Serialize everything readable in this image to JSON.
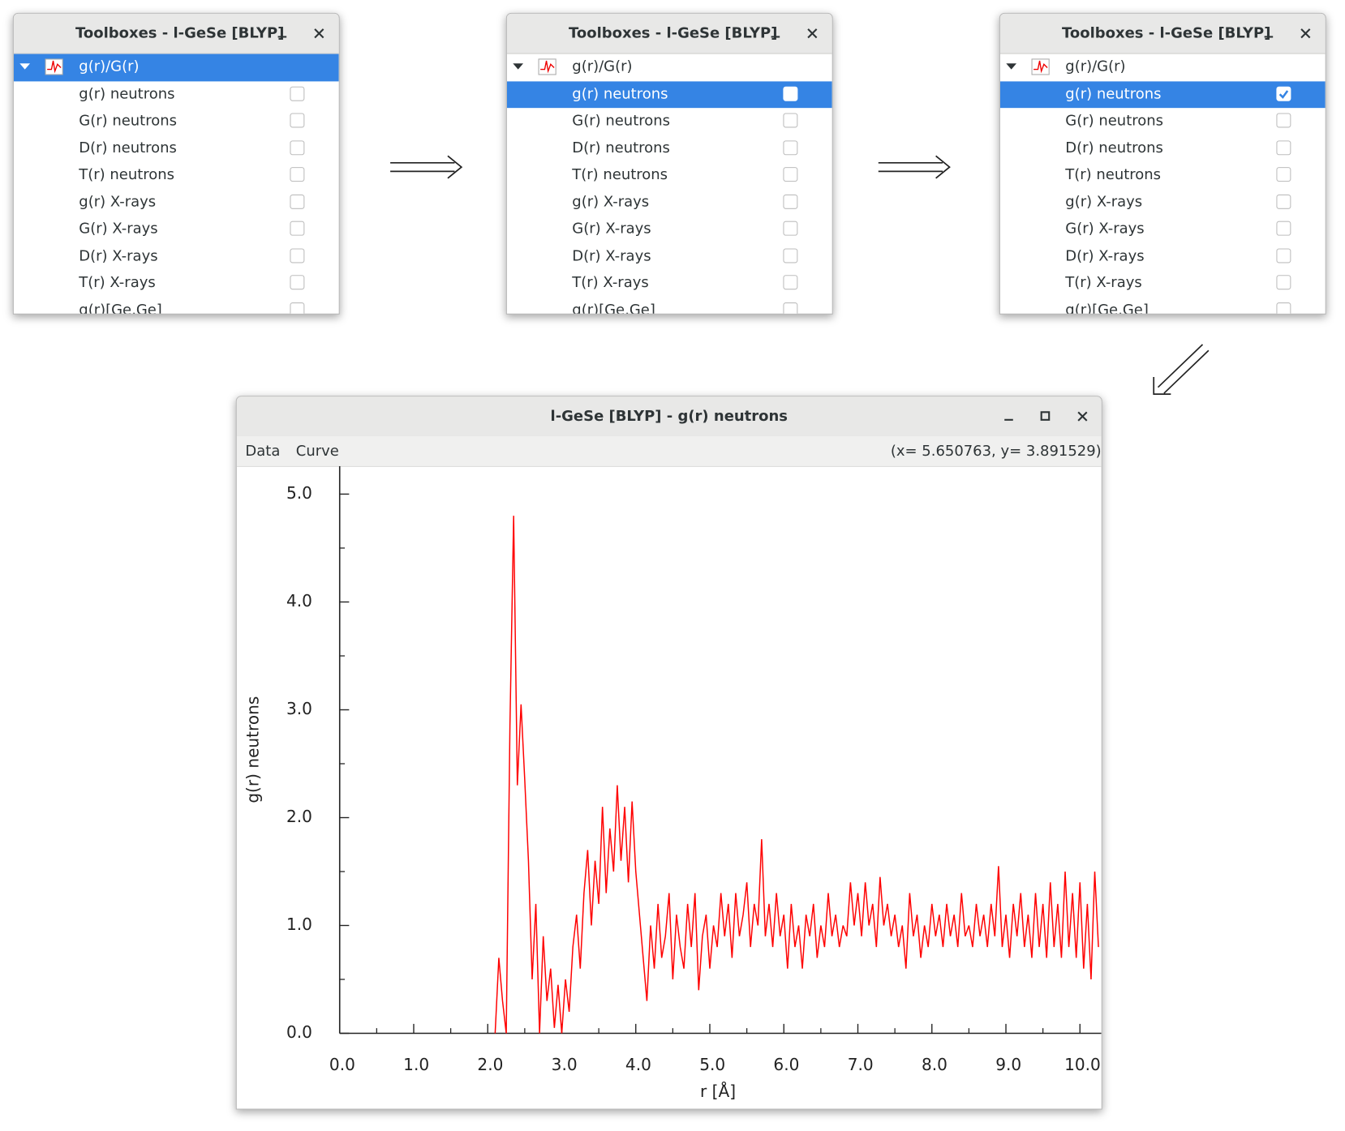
{
  "toolboxes": [
    {
      "title": "Toolboxes - l-GeSe [BLYP]",
      "root": "g(r)/G(r)",
      "items": [
        "g(r) neutrons",
        "G(r) neutrons",
        "D(r) neutrons",
        "T(r) neutrons",
        "g(r) X-rays",
        "G(r) X-rays",
        "D(r) X-rays",
        "T(r) X-rays",
        "g(r)[Ge,Ge]"
      ],
      "checked": [
        false,
        false,
        false,
        false,
        false,
        false,
        false,
        false,
        false
      ],
      "selected": "root"
    },
    {
      "title": "Toolboxes - l-GeSe [BLYP]",
      "root": "g(r)/G(r)",
      "items": [
        "g(r) neutrons",
        "G(r) neutrons",
        "D(r) neutrons",
        "T(r) neutrons",
        "g(r) X-rays",
        "G(r) X-rays",
        "D(r) X-rays",
        "T(r) X-rays",
        "g(r)[Ge,Ge]"
      ],
      "checked": [
        false,
        false,
        false,
        false,
        false,
        false,
        false,
        false,
        false
      ],
      "selected": 0
    },
    {
      "title": "Toolboxes - l-GeSe [BLYP]",
      "root": "g(r)/G(r)",
      "items": [
        "g(r) neutrons",
        "G(r) neutrons",
        "D(r) neutrons",
        "T(r) neutrons",
        "g(r) X-rays",
        "G(r) X-rays",
        "D(r) X-rays",
        "T(r) X-rays",
        "g(r)[Ge,Ge]"
      ],
      "checked": [
        true,
        false,
        false,
        false,
        false,
        false,
        false,
        false,
        false
      ],
      "selected": 0
    }
  ],
  "plot_window": {
    "title": "l-GeSe [BLYP] - g(r) neutrons",
    "menu": [
      "Data",
      "Curve"
    ],
    "status": "(x= 5.650763, y= 3.891529)"
  },
  "chart_data": {
    "type": "line",
    "xlabel": "r [Å]",
    "ylabel": "g(r) neutrons",
    "color": "#ff0000",
    "xlim": [
      0,
      10.29
    ],
    "ylim": [
      0,
      5.26
    ],
    "xticks": [
      {
        "value": 0,
        "label": "0.0"
      },
      {
        "value": 1,
        "label": "1.0"
      },
      {
        "value": 2,
        "label": "2.0"
      },
      {
        "value": 3,
        "label": "3.0"
      },
      {
        "value": 4,
        "label": "4.0"
      },
      {
        "value": 5,
        "label": "5.0"
      },
      {
        "value": 6,
        "label": "6.0"
      },
      {
        "value": 7,
        "label": "7.0"
      },
      {
        "value": 8,
        "label": "8.0"
      },
      {
        "value": 9,
        "label": "9.0"
      },
      {
        "value": 10,
        "label": "10.0"
      }
    ],
    "yticks": [
      {
        "value": 0,
        "label": "0.0"
      },
      {
        "value": 1,
        "label": "1.0"
      },
      {
        "value": 2,
        "label": "2.0"
      },
      {
        "value": 3,
        "label": "3.0"
      },
      {
        "value": 4,
        "label": "4.0"
      },
      {
        "value": 5,
        "label": "5.0"
      }
    ],
    "xminorticks": [
      0.5,
      1.5,
      2.5,
      3.5,
      4.5,
      5.5,
      6.5,
      7.5,
      8.5,
      9.5
    ],
    "yminorticks": [
      0.5,
      1.5,
      2.5,
      3.5,
      4.5
    ],
    "grid": false,
    "x": [
      2.1,
      2.15,
      2.2,
      2.25,
      2.3,
      2.35,
      2.4,
      2.45,
      2.5,
      2.55,
      2.6,
      2.65,
      2.7,
      2.75,
      2.8,
      2.85,
      2.9,
      2.95,
      3.0,
      3.05,
      3.1,
      3.15,
      3.2,
      3.25,
      3.3,
      3.35,
      3.4,
      3.45,
      3.5,
      3.55,
      3.6,
      3.65,
      3.7,
      3.75,
      3.8,
      3.85,
      3.9,
      3.95,
      4.0,
      4.05,
      4.1,
      4.15,
      4.2,
      4.25,
      4.3,
      4.35,
      4.4,
      4.45,
      4.5,
      4.55,
      4.6,
      4.65,
      4.7,
      4.75,
      4.8,
      4.85,
      4.9,
      4.95,
      5.0,
      5.05,
      5.1,
      5.15,
      5.2,
      5.25,
      5.3,
      5.35,
      5.4,
      5.45,
      5.5,
      5.55,
      5.6,
      5.65,
      5.7,
      5.75,
      5.8,
      5.85,
      5.9,
      5.95,
      6.0,
      6.05,
      6.1,
      6.15,
      6.2,
      6.25,
      6.3,
      6.35,
      6.4,
      6.45,
      6.5,
      6.55,
      6.6,
      6.65,
      6.7,
      6.75,
      6.8,
      6.85,
      6.9,
      6.95,
      7.0,
      7.05,
      7.1,
      7.15,
      7.2,
      7.25,
      7.3,
      7.35,
      7.4,
      7.45,
      7.5,
      7.55,
      7.6,
      7.65,
      7.7,
      7.75,
      7.8,
      7.85,
      7.9,
      7.95,
      8.0,
      8.05,
      8.1,
      8.15,
      8.2,
      8.25,
      8.3,
      8.35,
      8.4,
      8.45,
      8.5,
      8.55,
      8.6,
      8.65,
      8.7,
      8.75,
      8.8,
      8.85,
      8.9,
      8.95,
      9.0,
      9.05,
      9.1,
      9.15,
      9.2,
      9.25,
      9.3,
      9.35,
      9.4,
      9.45,
      9.5,
      9.55,
      9.6,
      9.65,
      9.7,
      9.75,
      9.8,
      9.85,
      9.9,
      9.95,
      10.0,
      10.05,
      10.1,
      10.15,
      10.2,
      10.25
    ],
    "values": [
      0,
      0.7,
      0.3,
      0,
      2.85,
      4.8,
      2.3,
      3.05,
      2.35,
      1.6,
      0.5,
      1.2,
      0,
      0.9,
      0.3,
      0.6,
      0.05,
      0.45,
      0,
      0.5,
      0.2,
      0.8,
      1.1,
      0.6,
      1.3,
      1.7,
      1.0,
      1.6,
      1.2,
      2.1,
      1.3,
      1.9,
      1.5,
      2.3,
      1.6,
      2.1,
      1.4,
      2.15,
      1.5,
      1.1,
      0.7,
      0.3,
      1.0,
      0.6,
      1.2,
      0.7,
      0.9,
      1.3,
      0.5,
      1.1,
      0.8,
      0.6,
      1.2,
      0.8,
      1.3,
      0.4,
      0.9,
      1.1,
      0.6,
      1.0,
      0.8,
      1.3,
      0.9,
      1.2,
      0.7,
      1.3,
      0.9,
      1.1,
      1.4,
      0.8,
      1.2,
      1.0,
      1.8,
      0.9,
      1.2,
      0.8,
      1.3,
      0.9,
      1.1,
      0.6,
      1.2,
      0.8,
      1.0,
      0.6,
      1.1,
      0.9,
      1.2,
      0.7,
      1.0,
      0.8,
      1.3,
      0.9,
      1.1,
      0.8,
      1.0,
      0.9,
      1.4,
      1.0,
      1.3,
      0.9,
      1.4,
      1.0,
      1.2,
      0.8,
      1.45,
      1.0,
      1.2,
      0.9,
      1.1,
      0.8,
      1.0,
      0.6,
      1.3,
      0.9,
      1.1,
      0.7,
      1.0,
      0.8,
      1.2,
      0.9,
      1.1,
      0.8,
      1.2,
      0.9,
      1.1,
      0.8,
      1.3,
      0.9,
      1.0,
      0.8,
      1.2,
      0.9,
      1.1,
      0.8,
      1.2,
      0.9,
      1.55,
      0.8,
      1.1,
      0.7,
      1.2,
      0.9,
      1.3,
      0.8,
      1.1,
      0.7,
      1.3,
      0.8,
      1.2,
      0.7,
      1.4,
      0.8,
      1.2,
      0.7,
      1.5,
      0.8,
      1.3,
      0.7,
      1.4,
      0.6,
      1.2,
      0.5,
      1.5,
      0.8
    ]
  }
}
